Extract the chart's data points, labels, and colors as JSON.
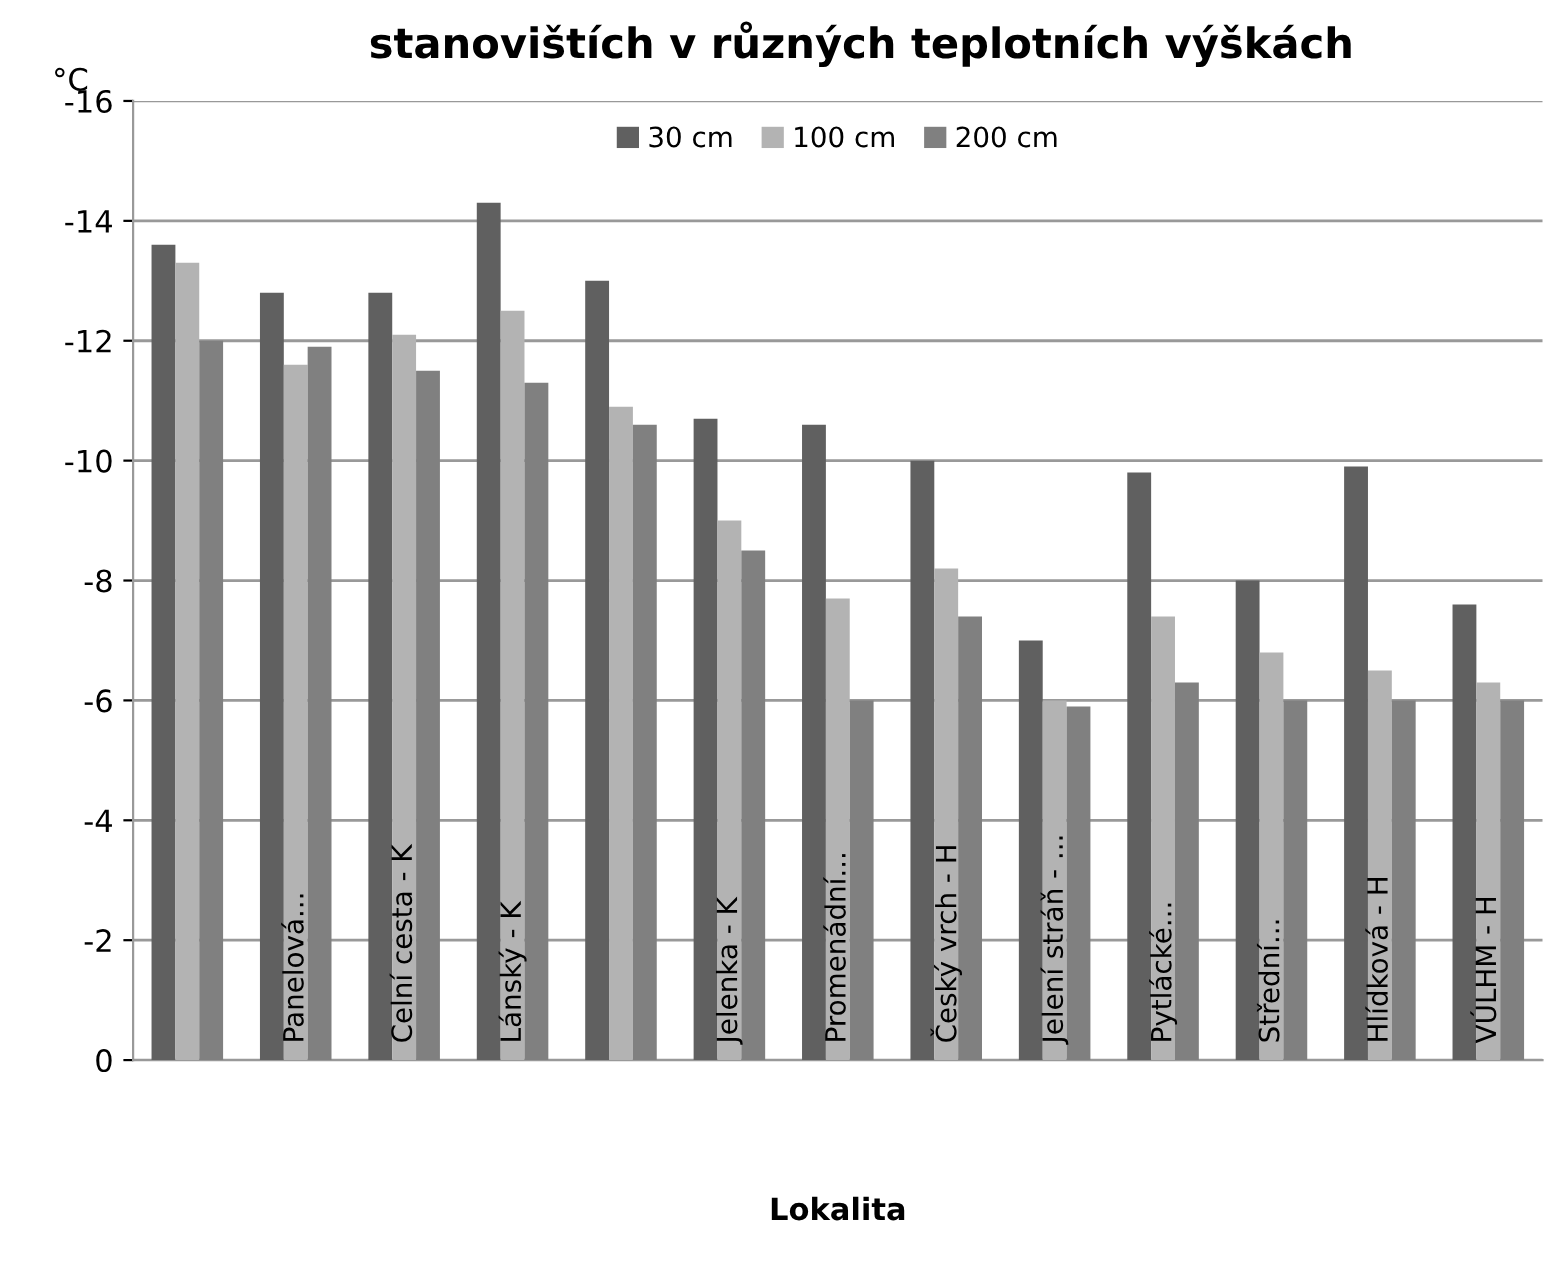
{
  "chart_data": {
    "type": "bar",
    "title": "stanovištích v různých teplotních výškách",
    "ylabel": "°C",
    "xlabel": "Lokalita",
    "categories": [
      null,
      "Panelová...",
      "Celní cesta - K",
      "Lánský - K",
      null,
      "Jelenka - K",
      "Promenádní...",
      "Český vrch - H",
      "Jelení stráň - ...",
      "Pytlácké...",
      "Střední...",
      "Hlídková - H",
      "VÚLHM - H"
    ],
    "series": [
      {
        "name": "30 cm",
        "color": "#606060",
        "values": [
          -13.6,
          -12.8,
          -12.8,
          -14.3,
          -13.0,
          -10.7,
          -10.6,
          -10.0,
          -7.0,
          -9.8,
          -8.0,
          -9.9,
          -7.6
        ]
      },
      {
        "name": "100 cm",
        "color": "#b3b3b3",
        "values": [
          -13.3,
          -11.6,
          -12.1,
          -12.5,
          -10.9,
          -9.0,
          -7.7,
          -8.2,
          -6.0,
          -7.4,
          -6.8,
          -6.5,
          -6.3
        ]
      },
      {
        "name": "200 cm",
        "color": "#808080",
        "values": [
          -12.0,
          -11.9,
          -11.5,
          -11.3,
          -10.6,
          -8.5,
          -6.0,
          -7.4,
          -5.9,
          -6.3,
          -6.0,
          -6.0,
          -6.0
        ]
      }
    ],
    "ylim": [
      0,
      -16
    ],
    "yticks": [
      0,
      -2,
      -4,
      -6,
      -8,
      -10,
      -12,
      -14,
      -16
    ],
    "grid": "y",
    "legend": "top"
  }
}
